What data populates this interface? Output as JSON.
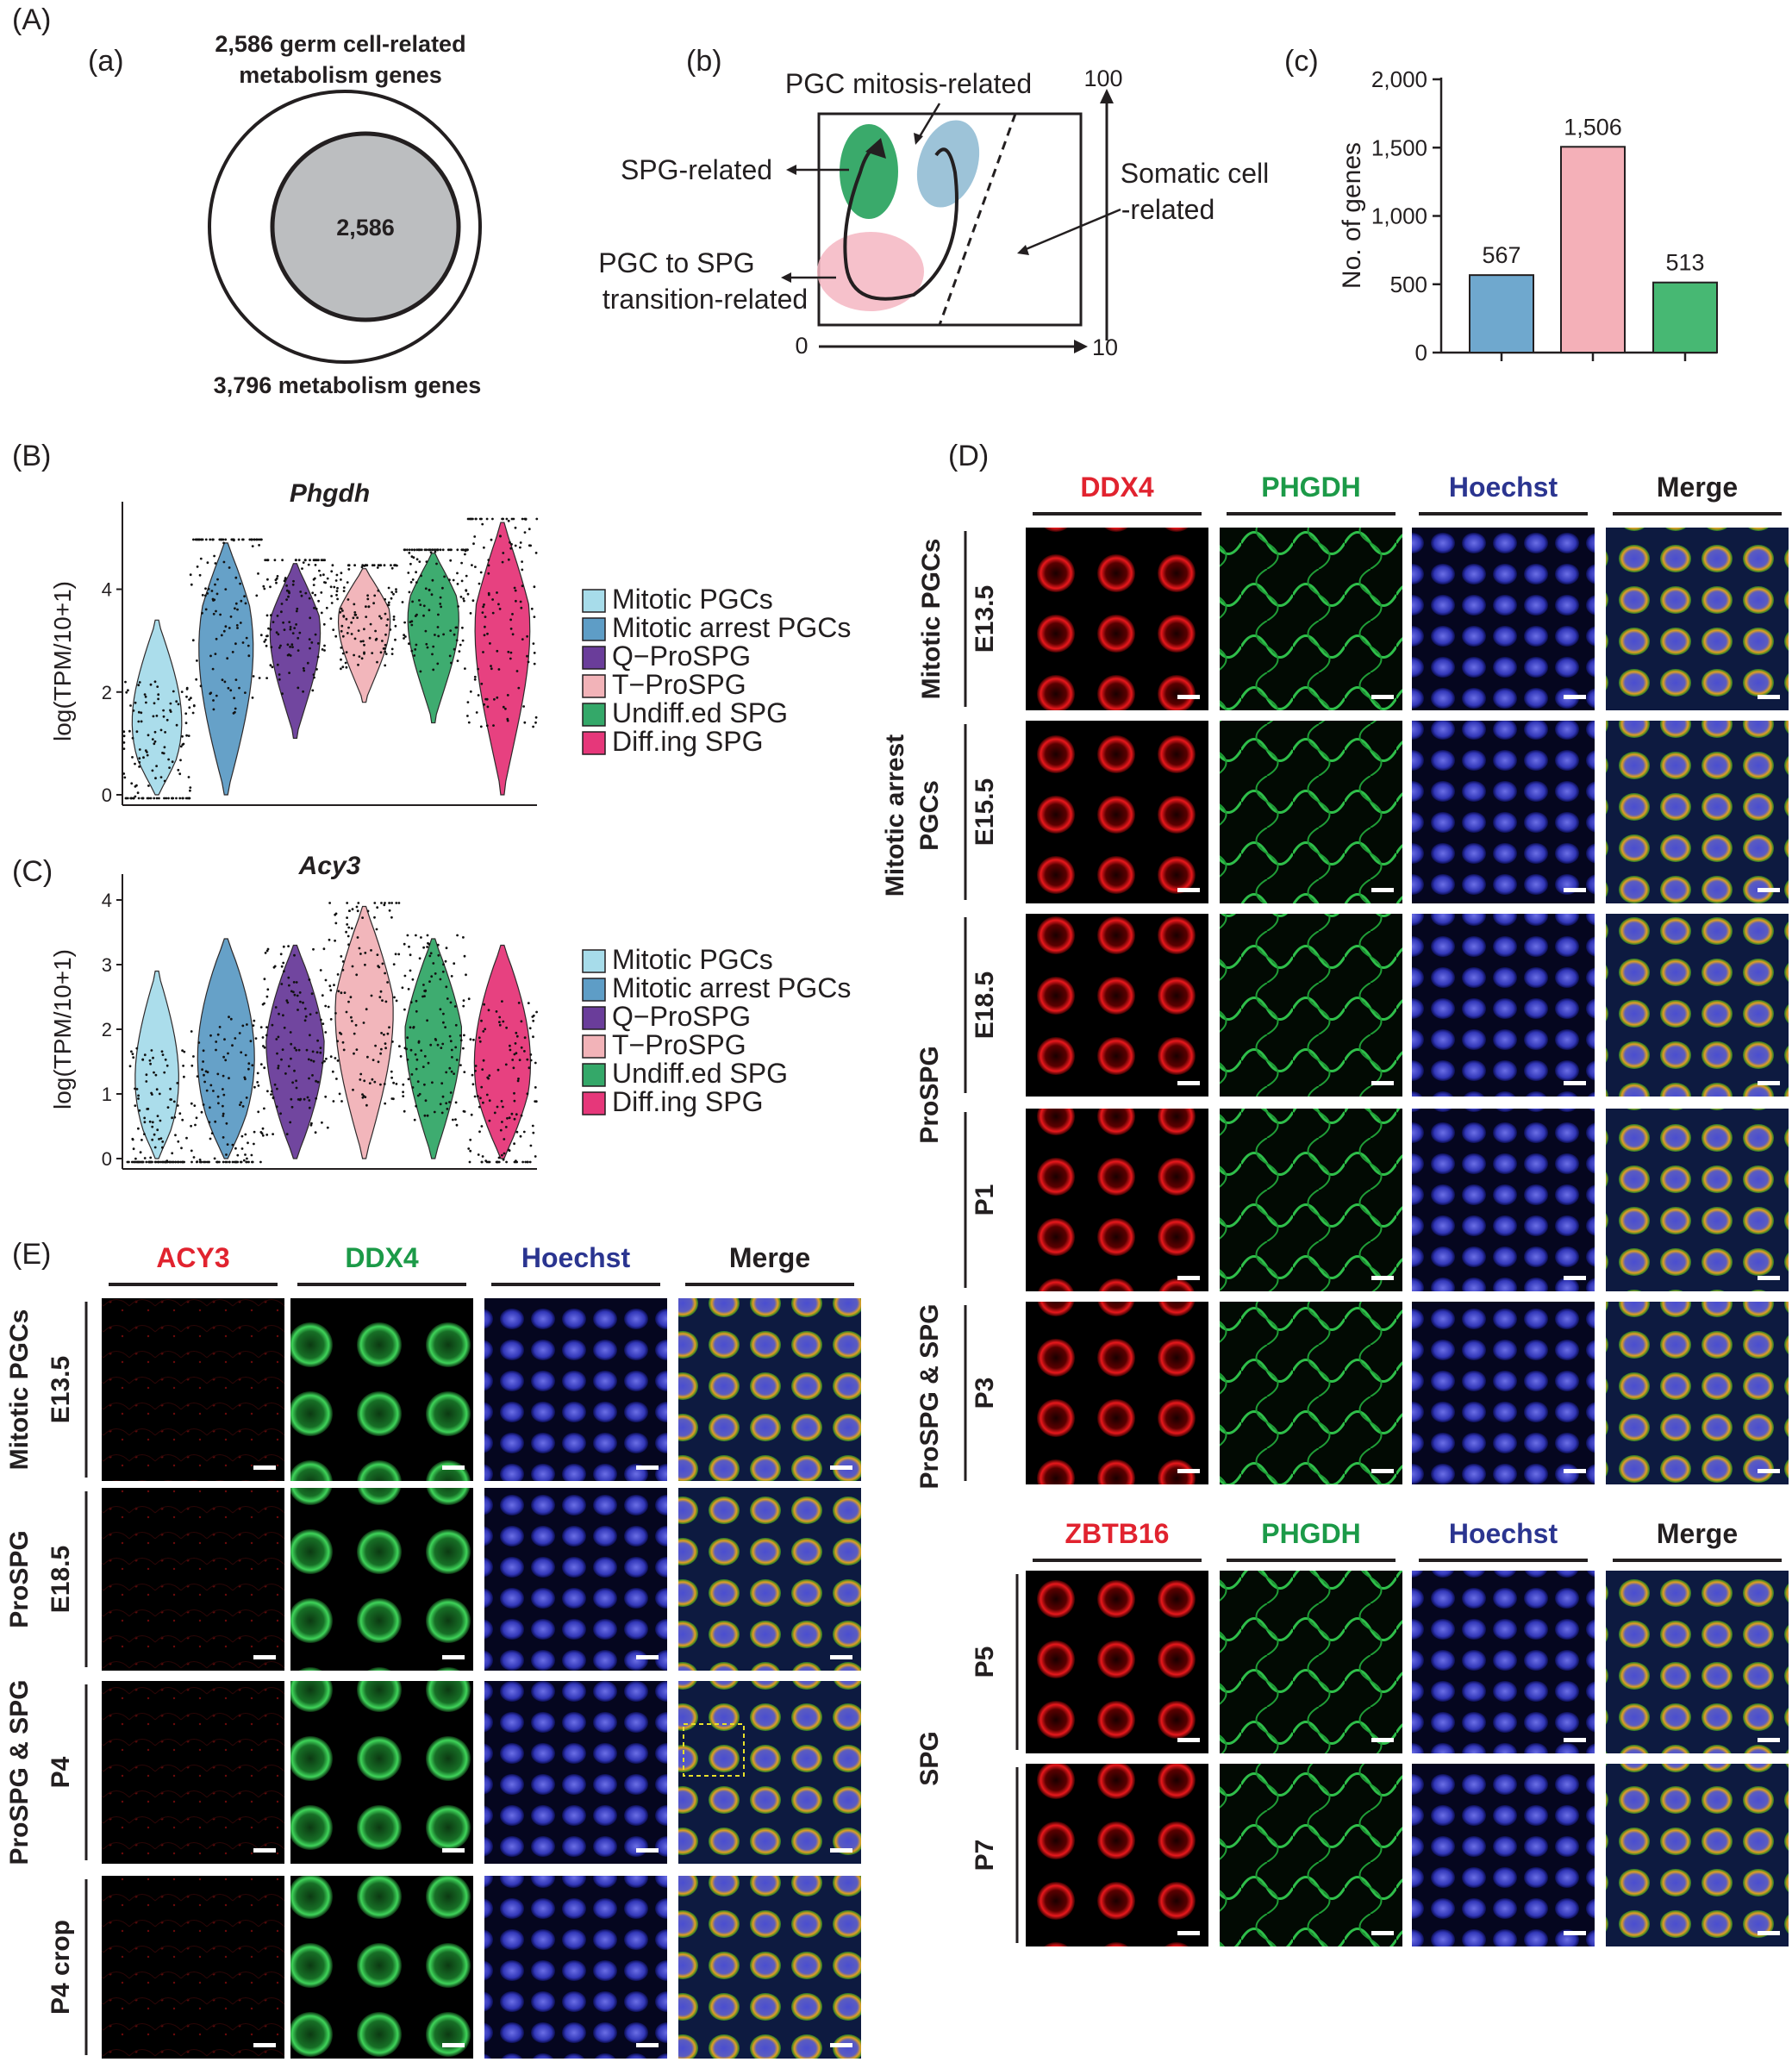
{
  "panel_A": {
    "label": "(A)",
    "a": {
      "label": "(a)",
      "outer_title": "2,586 germ cell-related\nmetabolism genes",
      "inner_value": "2,586",
      "bottom_title": "3,796 metabolism genes"
    },
    "b": {
      "label": "(b)",
      "mitosis_label": "PGC mitosis-related",
      "spg_label": "SPG-related",
      "somatic_label_1": "Somatic cell",
      "somatic_label_2": "-related",
      "transition_label_1": "PGC to SPG",
      "transition_label_2": "transition-related",
      "axis_top": "100",
      "axis_origin": "0",
      "axis_right": "10",
      "colors": {
        "mitosis": "#9dc3d8",
        "spg": "#3aaa6b",
        "transition": "#f4b6c2"
      }
    },
    "c": {
      "label": "(c)"
    }
  },
  "chart_data": {
    "type": "bar",
    "ylabel": "No. of genes",
    "ylim": [
      0,
      2000
    ],
    "yticks": [
      "0",
      "500",
      "1,000",
      "1,500",
      "2,000"
    ],
    "values": [
      567,
      1506,
      513
    ],
    "value_labels": [
      "567",
      "1,506",
      "513"
    ],
    "colors": [
      "#6fa8ce",
      "#f4b0b8",
      "#47b873"
    ]
  },
  "panel_B": {
    "label": "(B)",
    "gene": "Phgdh",
    "ylabel": "log(TPM/10+1)",
    "yticks": [
      "0",
      "2",
      "4"
    ],
    "legend": [
      "Mitotic PGCs",
      "Mitotic arrest PGCs",
      "Q−ProSPG",
      "T−ProSPG",
      "Undiff.ed SPG",
      "Diff.ing SPG"
    ]
  },
  "panel_C": {
    "label": "(C)",
    "gene": "Acy3",
    "ylabel": "log(TPM/10+1)",
    "yticks": [
      "0",
      "1",
      "2",
      "3",
      "4"
    ],
    "legend": [
      "Mitotic PGCs",
      "Mitotic arrest PGCs",
      "Q−ProSPG",
      "T−ProSPG",
      "Undiff.ed SPG",
      "Diff.ing SPG"
    ]
  },
  "legend_colors": [
    "#a7dcea",
    "#5e9dc6",
    "#6a3d9a",
    "#f2b3b8",
    "#34a869",
    "#e6377a"
  ],
  "panel_D": {
    "label": "(D)",
    "columns_top": [
      "DDX4",
      "PHGDH",
      "Hoechst",
      "Merge"
    ],
    "columns_bottom": [
      "ZBTB16",
      "PHGDH",
      "Hoechst",
      "Merge"
    ],
    "groups": [
      "Mitotic PGCs",
      "Mitotic arrest",
      "PGCs",
      "ProSPG",
      "ProSPG & SPG",
      "SPG"
    ],
    "rows": [
      "E13.5",
      "E15.5",
      "E18.5",
      "P1",
      "P3",
      "P5",
      "P7"
    ]
  },
  "panel_E": {
    "label": "(E)",
    "columns": [
      "ACY3",
      "DDX4",
      "Hoechst",
      "Merge"
    ],
    "groups": [
      "Mitotic PGCs",
      "ProSPG",
      "ProSPG & SPG"
    ],
    "rows": [
      "E13.5",
      "E18.5",
      "P4",
      "P4 crop"
    ]
  },
  "colors": {
    "red_label": "#e1232f",
    "green_label": "#1c9a48",
    "blue_label": "#2b3590",
    "dark_label": "#231f20"
  }
}
